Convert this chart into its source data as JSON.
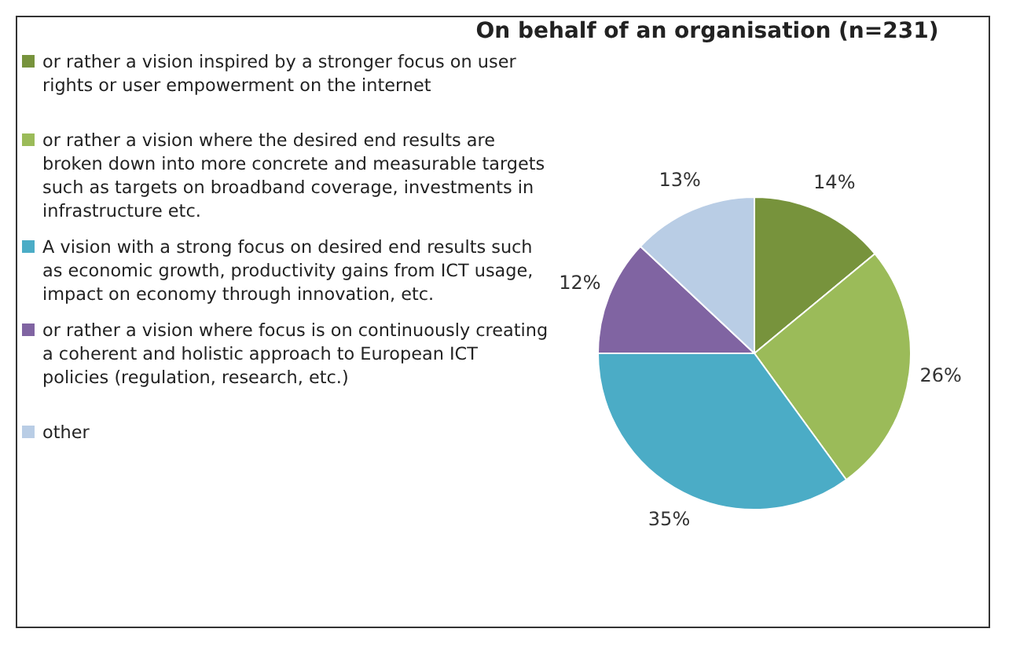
{
  "chart_data": {
    "type": "pie",
    "title": "On behalf of an organisation (n=231)",
    "categories": [
      "or rather a vision inspired by a stronger focus on user rights or user empowerment on the internet",
      "or rather a vision where the desired end results are broken down into more concrete and measurable targets such  as targets on broadband coverage, investments in infrastructure etc.",
      "A vision with a strong focus on desired end results such as economic growth, productivity gains from ICT usage, impact on economy through innovation, etc.",
      "or rather a vision where focus is on continuously creating a coherent  and holistic approach to European ICT policies (regulation, research, etc.)",
      "other"
    ],
    "values": [
      14,
      26,
      35,
      12,
      13
    ],
    "colors": [
      "#77933c",
      "#9bbb59",
      "#4bacc6",
      "#8064a2",
      "#b9cde5"
    ],
    "value_labels": [
      "14%",
      "26%",
      "35%",
      "12%",
      "13%"
    ],
    "legend": "left"
  }
}
